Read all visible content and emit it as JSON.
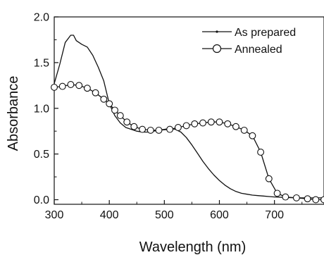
{
  "chart_data": {
    "type": "line",
    "xlabel": "Wavelength (nm)",
    "ylabel": "Absorbance",
    "xlim": [
      300,
      790
    ],
    "ylim": [
      -0.05,
      2.0
    ],
    "xticks": [
      300,
      400,
      500,
      600,
      700
    ],
    "xtick_labels": [
      "300",
      "400",
      "500",
      "600",
      "700"
    ],
    "yticks": [
      0.0,
      0.5,
      1.0,
      1.5,
      2.0
    ],
    "ytick_labels": [
      "0.0",
      "0.5",
      "1.0",
      "1.5",
      "2.0"
    ],
    "grid": false,
    "legend_position": "top-right",
    "series": [
      {
        "name": "As prepared",
        "marker": "none",
        "color": "#111111",
        "x": [
          300,
          310,
          320,
          330,
          335,
          340,
          350,
          360,
          370,
          380,
          390,
          400,
          410,
          420,
          430,
          440,
          450,
          460,
          470,
          480,
          490,
          500,
          510,
          520,
          530,
          540,
          550,
          560,
          570,
          580,
          590,
          600,
          610,
          620,
          630,
          640,
          650,
          660,
          670,
          680,
          690,
          700,
          720,
          740,
          760,
          790
        ],
        "y": [
          1.27,
          1.48,
          1.72,
          1.8,
          1.8,
          1.74,
          1.7,
          1.67,
          1.58,
          1.45,
          1.3,
          1.05,
          0.92,
          0.84,
          0.79,
          0.77,
          0.75,
          0.74,
          0.74,
          0.75,
          0.76,
          0.77,
          0.78,
          0.77,
          0.74,
          0.68,
          0.6,
          0.51,
          0.42,
          0.34,
          0.27,
          0.21,
          0.16,
          0.12,
          0.09,
          0.07,
          0.06,
          0.05,
          0.045,
          0.04,
          0.035,
          0.03,
          0.025,
          0.02,
          0.02,
          0.02
        ]
      },
      {
        "name": "Annealed",
        "marker": "circle",
        "color": "#111111",
        "x": [
          300,
          315,
          330,
          345,
          360,
          375,
          390,
          400,
          410,
          420,
          432,
          445,
          460,
          475,
          490,
          510,
          525,
          540,
          555,
          570,
          585,
          600,
          615,
          630,
          645,
          660,
          675,
          690,
          705,
          720,
          740,
          760,
          775,
          790
        ],
        "y": [
          1.23,
          1.24,
          1.26,
          1.25,
          1.22,
          1.17,
          1.1,
          1.05,
          0.98,
          0.92,
          0.85,
          0.8,
          0.77,
          0.76,
          0.76,
          0.77,
          0.79,
          0.81,
          0.83,
          0.84,
          0.85,
          0.85,
          0.83,
          0.8,
          0.76,
          0.7,
          0.52,
          0.23,
          0.07,
          0.03,
          0.02,
          0.01,
          0.0,
          0.0
        ],
        "marker_x": [
          300,
          315,
          330,
          345,
          360,
          375,
          390,
          400,
          410,
          420,
          432,
          445,
          460,
          475,
          490,
          510,
          525,
          540,
          555,
          570,
          585,
          600,
          615,
          630,
          645,
          660,
          675,
          690,
          705,
          720,
          740,
          760,
          775,
          790
        ],
        "marker_y": [
          1.23,
          1.24,
          1.26,
          1.25,
          1.22,
          1.17,
          1.1,
          1.05,
          0.98,
          0.92,
          0.85,
          0.8,
          0.77,
          0.76,
          0.76,
          0.77,
          0.79,
          0.81,
          0.83,
          0.84,
          0.85,
          0.85,
          0.83,
          0.8,
          0.76,
          0.7,
          0.52,
          0.23,
          0.07,
          0.03,
          0.02,
          0.01,
          0.0,
          0.0
        ]
      }
    ]
  }
}
